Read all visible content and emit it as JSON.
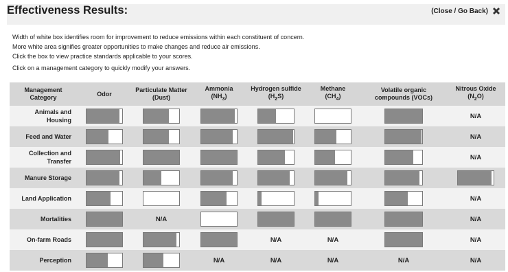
{
  "header": {
    "title": "Effectiveness Results:",
    "close_label": "(Close / Go Back)"
  },
  "intro": {
    "line1": "Width of white box identifies room for improvement to reduce emissions within each constituent of concern.",
    "line2": "More white area signifies greater opportunities to make changes and reduce air emissions.",
    "line3": "Click the box to view practice standards applicable to your scores.",
    "line4": "Click on a management category to quickly modify your answers."
  },
  "table": {
    "columns": [
      {
        "label": "Management Category"
      },
      {
        "label": "Odor"
      },
      {
        "label": "Particulate Matter (Dust)"
      },
      {
        "main": "Ammonia",
        "pre": "(NH",
        "sub": "3",
        "post": ")"
      },
      {
        "main": "Hydrogen sulfide",
        "pre": "(H",
        "sub": "2",
        "post": "S)"
      },
      {
        "main": "Methane",
        "pre": "(CH",
        "sub": "4",
        "post": ")"
      },
      {
        "label": "Volatile organic compounds (VOCs)"
      },
      {
        "main": "Nitrous Oxide",
        "pre": "(N",
        "sub": "2",
        "post": "O)"
      }
    ],
    "na_label": "N/A",
    "rows": [
      {
        "category": "Animals and Housing",
        "scores": [
          0.92,
          0.72,
          0.95,
          0.5,
          0.0,
          1.0,
          null
        ]
      },
      {
        "category": "Feed and Water",
        "scores": [
          0.62,
          0.72,
          0.88,
          0.98,
          0.6,
          0.98,
          null
        ]
      },
      {
        "category": "Collection and Transfer",
        "scores": [
          0.95,
          1.0,
          1.0,
          0.75,
          0.55,
          0.75,
          null
        ]
      },
      {
        "category": "Manure Storage",
        "scores": [
          0.92,
          0.5,
          0.88,
          0.88,
          0.9,
          0.92,
          0.95
        ]
      },
      {
        "category": "Land Application",
        "scores": [
          0.68,
          0.0,
          0.72,
          0.1,
          0.1,
          0.62,
          null
        ]
      },
      {
        "category": "Mortalities",
        "scores": [
          1.0,
          null,
          0.0,
          1.0,
          1.0,
          1.0,
          null
        ]
      },
      {
        "category": "On-farm Roads",
        "scores": [
          1.0,
          0.92,
          1.0,
          null,
          null,
          1.0,
          null
        ]
      },
      {
        "category": "Perception",
        "scores": [
          0.6,
          0.55,
          null,
          null,
          null,
          null,
          null
        ]
      }
    ]
  }
}
